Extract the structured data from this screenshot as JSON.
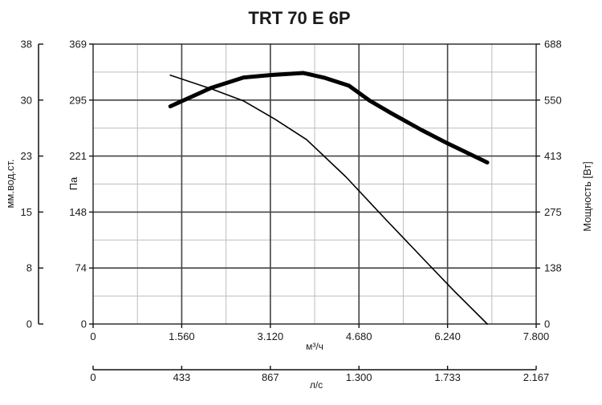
{
  "chart_data": {
    "type": "line",
    "title": "TRT 70 E 6P",
    "x_axis": {
      "label": "м³/ч",
      "ticks": [
        0,
        1560,
        3120,
        4680,
        6240,
        7800
      ],
      "tick_labels": [
        "0",
        "1.560",
        "3.120",
        "4.680",
        "6.240",
        "7.800"
      ],
      "range": [
        0,
        7800
      ]
    },
    "x2_axis": {
      "label": "л/с",
      "tick_labels": [
        "0",
        "433",
        "867",
        "1.300",
        "1.733",
        "2.167"
      ],
      "range": [
        0,
        2167
      ]
    },
    "y_left_inner": {
      "label": "Па",
      "tick_labels": [
        "0",
        "74",
        "148",
        "221",
        "295",
        "369"
      ],
      "range": [
        0,
        369
      ]
    },
    "y_left_outer": {
      "label": "мм.вод.ст.",
      "tick_labels": [
        "0",
        "8",
        "15",
        "23",
        "30",
        "38"
      ],
      "range": [
        0,
        38
      ]
    },
    "y_right": {
      "label": "Мощность [Вт]",
      "tick_labels": [
        "0",
        "138",
        "275",
        "413",
        "550",
        "688"
      ],
      "range": [
        0,
        688
      ]
    },
    "grid": true,
    "series": [
      {
        "role": "pressure",
        "axis": "y_left_inner",
        "unit": "Па",
        "color": "#000000",
        "weight": "thin",
        "x": [
          1360,
          2080,
          2650,
          3200,
          3760,
          4450,
          5150,
          5850,
          6350,
          6940
        ],
        "y": [
          328,
          310,
          294,
          270,
          243,
          194,
          138,
          83,
          44,
          0
        ]
      },
      {
        "role": "power",
        "axis": "y_right",
        "unit": "Вт",
        "color": "#000000",
        "weight": "thick",
        "x": [
          1360,
          2070,
          2650,
          3120,
          3700,
          4080,
          4500,
          4870,
          5250,
          5780,
          6240,
          6940
        ],
        "y": [
          535,
          580,
          606,
          612,
          617,
          605,
          586,
          549,
          518,
          477,
          444,
          397
        ]
      }
    ]
  }
}
